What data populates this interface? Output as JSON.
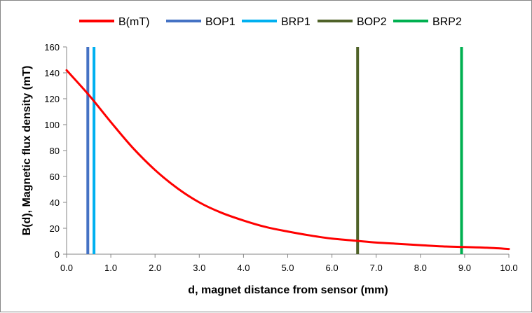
{
  "chart_data": {
    "type": "line",
    "title": "",
    "xlabel": "d, magnet distance from sensor (mm)",
    "ylabel": "B(d), Magnetic flux density (mT)",
    "xlim": [
      0,
      10
    ],
    "ylim": [
      0,
      160
    ],
    "xticks": [
      "0.0",
      "1.0",
      "2.0",
      "3.0",
      "4.0",
      "5.0",
      "6.0",
      "7.0",
      "8.0",
      "9.0",
      "10.0"
    ],
    "yticks": [
      "0",
      "20",
      "40",
      "60",
      "80",
      "100",
      "120",
      "140",
      "160"
    ],
    "grid": false,
    "legend_position": "top",
    "series": [
      {
        "name": "B(mT)",
        "color": "#ff0000",
        "kind": "curve",
        "x": [
          0.0,
          0.5,
          1.0,
          1.5,
          2.0,
          2.5,
          3.0,
          3.5,
          4.0,
          4.5,
          5.0,
          5.5,
          6.0,
          6.5,
          7.0,
          7.5,
          8.0,
          8.5,
          9.0,
          9.5,
          10.0
        ],
        "y": [
          142,
          123,
          102,
          82,
          65,
          51,
          40,
          32,
          26,
          21,
          17.5,
          14.5,
          12,
          10.5,
          9,
          8,
          7,
          6,
          5.5,
          5,
          4
        ]
      },
      {
        "name": "BOP1",
        "color": "#4472c4",
        "kind": "vertical",
        "x_value": 0.48
      },
      {
        "name": "BRP1",
        "color": "#00b0f0",
        "kind": "vertical",
        "x_value": 0.62
      },
      {
        "name": "BOP2",
        "color": "#4f6228",
        "kind": "vertical",
        "x_value": 6.58
      },
      {
        "name": "BRP2",
        "color": "#00b050",
        "kind": "vertical",
        "x_value": 8.93
      }
    ]
  }
}
